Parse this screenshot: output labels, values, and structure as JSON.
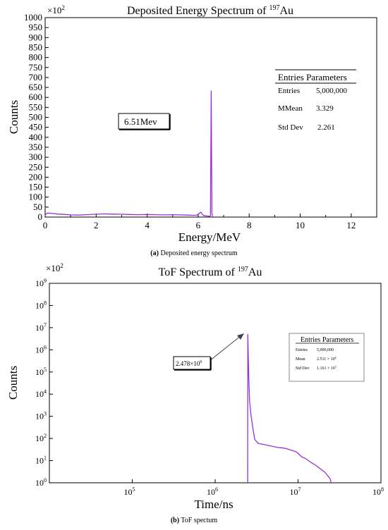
{
  "chart_data": [
    {
      "type": "line",
      "title_prefix": "Deposited Energy Spectrum of ",
      "title_sup": "197",
      "title_suffix": "Au",
      "xlabel": "Energy/MeV",
      "ylabel": "Counts",
      "y_multiplier_base": "×10",
      "y_multiplier_exp": "2",
      "xlim": [
        0,
        13
      ],
      "ylim": [
        0,
        1000
      ],
      "x_ticks": [
        "0",
        "2",
        "4",
        "6",
        "8",
        "10",
        "12"
      ],
      "y_ticks": [
        "0",
        "50",
        "100",
        "150",
        "200",
        "250",
        "300",
        "350",
        "400",
        "450",
        "500",
        "550",
        "600",
        "650",
        "700",
        "750",
        "800",
        "850",
        "900",
        "950",
        "1000"
      ],
      "series": [
        {
          "color": "#9b30d9",
          "x": [
            0.0,
            0.1,
            0.3,
            0.5,
            0.8,
            1.0,
            1.3,
            1.6,
            2.0,
            2.3,
            2.6,
            3.0,
            3.3,
            3.6,
            4.0,
            4.3,
            4.6,
            5.0,
            5.3,
            5.6,
            5.9,
            6.0,
            6.1,
            6.2,
            6.3,
            6.4,
            6.45,
            6.48,
            6.51,
            6.54,
            6.56,
            6.58
          ],
          "y": [
            12,
            20,
            18,
            15,
            13,
            11,
            10,
            12,
            14,
            16,
            15,
            14,
            13,
            12,
            13,
            12,
            11,
            12,
            11,
            10,
            9,
            12,
            25,
            8,
            6,
            5,
            4,
            6,
            632,
            20,
            2,
            0
          ]
        }
      ],
      "annotation": "6.51Mev",
      "stats_box": {
        "header": "Entries Parameters",
        "rows": [
          {
            "label": "Entries",
            "value": "5,000,000"
          },
          {
            "label": "MMean",
            "value": "3.329"
          },
          {
            "label": "Std Dev",
            "value": "2.261"
          }
        ]
      },
      "caption_letter": "(a)",
      "caption_text": " Deposited energy spectrum"
    },
    {
      "type": "line",
      "title_prefix": "ToF Spectrum of ",
      "title_sup": "197",
      "title_suffix": "Au",
      "xlabel": "Time/ns",
      "ylabel": "Counts",
      "x_scale": "log",
      "y_scale": "log",
      "xlim": [
        10000,
        100000000
      ],
      "ylim": [
        1,
        1000000000
      ],
      "x_ticks": [
        {
          "base": "10",
          "exp": "5",
          "value": 100000
        },
        {
          "base": "10",
          "exp": "6",
          "value": 1000000
        },
        {
          "base": "10",
          "exp": "7",
          "value": 10000000
        },
        {
          "base": "10",
          "exp": "8",
          "value": 100000000
        }
      ],
      "y_ticks": [
        {
          "base": "10",
          "exp": "0",
          "value": 1
        },
        {
          "base": "10",
          "exp": "1",
          "value": 10
        },
        {
          "base": "10",
          "exp": "2",
          "value": 100
        },
        {
          "base": "10",
          "exp": "3",
          "value": 1000
        },
        {
          "base": "10",
          "exp": "4",
          "value": 10000
        },
        {
          "base": "10",
          "exp": "5",
          "value": 100000
        },
        {
          "base": "10",
          "exp": "6",
          "value": 1000000
        },
        {
          "base": "10",
          "exp": "7",
          "value": 10000000
        },
        {
          "base": "10",
          "exp": "8",
          "value": 100000000
        },
        {
          "base": "10",
          "exp": "9",
          "value": 1000000000
        }
      ],
      "series": [
        {
          "color": "#9b30d9",
          "x": [
            2470000,
            2478000,
            2500000,
            2550000,
            2600000,
            2700000,
            2850000,
            3000000,
            3300000,
            3700000,
            4200000,
            4800000,
            5500000,
            6300000,
            7200000,
            8200000,
            9500000,
            11000000,
            12500000,
            14500000,
            16500000,
            19000000,
            21000000,
            23000000,
            24500000,
            25000000
          ],
          "y": [
            1,
            5000000,
            800000,
            40000,
            5000,
            1200,
            300,
            90,
            60,
            55,
            50,
            45,
            40,
            38,
            35,
            30,
            25,
            15,
            12,
            8,
            6,
            4,
            3,
            2,
            1.5,
            1
          ]
        }
      ],
      "annotation_base": "2.478×10",
      "annotation_exp": "6",
      "stats_box": {
        "header": "Entries Parameters",
        "rows": [
          {
            "label": "Entries",
            "value": "5,000,000"
          },
          {
            "label": "Mean",
            "value_base": "2.511 × 10",
            "value_exp": "6"
          },
          {
            "label": "Std Dev",
            "value_base": "1.161 × 10",
            "value_exp": "7"
          }
        ]
      },
      "caption_letter": "(b)",
      "caption_text": " ToF spectum"
    }
  ]
}
